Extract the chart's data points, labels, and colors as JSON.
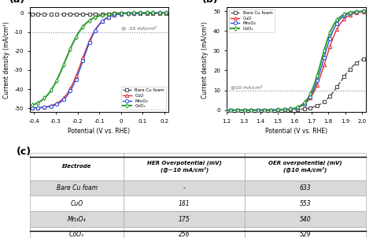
{
  "panel_a": {
    "xlim": [
      -0.42,
      0.22
    ],
    "ylim": [
      -52,
      3
    ],
    "xlabel": "Potential (V vs. RHE)",
    "ylabel": "Current density (mA/cm²)",
    "label": "(a)",
    "ref_line_y": -10,
    "ref_label": "@ -10 mA/cm²",
    "xticks": [
      -0.4,
      -0.3,
      -0.2,
      -0.1,
      0.0,
      0.1,
      0.2
    ],
    "yticks": [
      0,
      -10,
      -20,
      -30,
      -40,
      -50
    ],
    "series": {
      "Bare Cu foam": {
        "color": "#4d4d4d",
        "marker": "s",
        "linestyle": "--"
      },
      "CuO": {
        "color": "#e03030",
        "marker": "^",
        "linestyle": "-"
      },
      "Mn3O4": {
        "color": "#3050e0",
        "marker": "o",
        "linestyle": "-"
      },
      "CoOx": {
        "color": "#30a030",
        "marker": "d",
        "linestyle": "-"
      }
    }
  },
  "panel_b": {
    "xlim": [
      1.2,
      2.02
    ],
    "ylim": [
      -1,
      52
    ],
    "xlabel": "Potential (V vs. RHE)",
    "ylabel": "Current density (mA/cm²)",
    "label": "(b)",
    "ref_line_y": 10,
    "ref_label": "@10 mA/cm²",
    "xticks": [
      1.2,
      1.3,
      1.4,
      1.5,
      1.6,
      1.7,
      1.8,
      1.9,
      2.0
    ],
    "yticks": [
      0,
      10,
      20,
      30,
      40,
      50
    ],
    "series": {
      "Bare Cu foam": {
        "color": "#4d4d4d",
        "marker": "s",
        "linestyle": "--"
      },
      "CuO": {
        "color": "#e03030",
        "marker": "^",
        "linestyle": "-"
      },
      "Mn3O4": {
        "color": "#3050e0",
        "marker": "o",
        "linestyle": "-"
      },
      "CoOx": {
        "color": "#30a030",
        "marker": "d",
        "linestyle": "-"
      }
    }
  },
  "panel_c": {
    "label": "(c)",
    "col_labels": [
      "Electrode",
      "HER Overpotential (mV)\n(@−10 mA/cm²)",
      "OER overpotential (mV)\n(@10 mA/cm²)"
    ],
    "rows": [
      [
        "Bare Cu foam",
        "-",
        "633"
      ],
      [
        "CuO",
        "181",
        "553"
      ],
      [
        "Mn₃O₄",
        "175",
        "540"
      ],
      [
        "CoOₓ",
        "256",
        "529"
      ]
    ],
    "row_colors": [
      "#d9d9d9",
      "#ffffff",
      "#d9d9d9",
      "#ffffff"
    ]
  },
  "bg_color": "#ffffff"
}
